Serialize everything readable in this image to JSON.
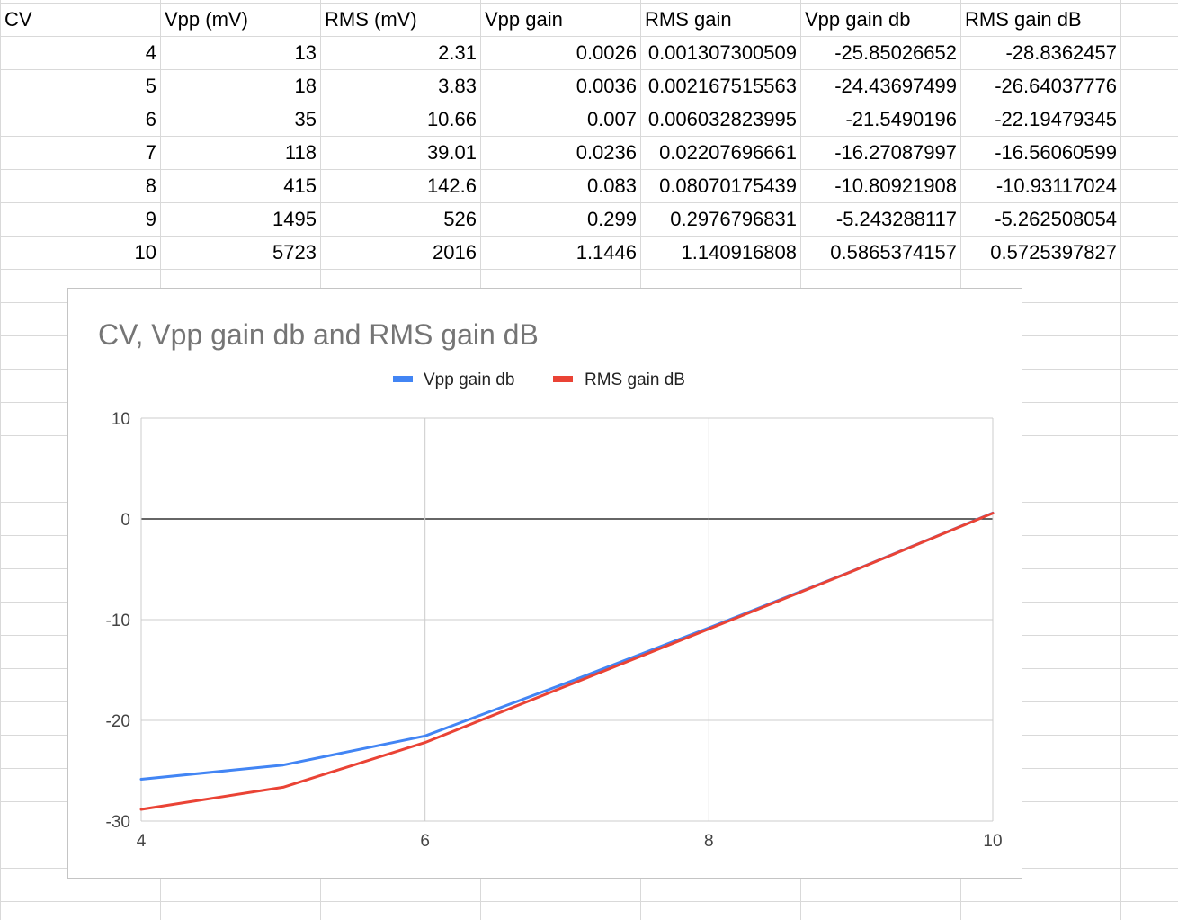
{
  "spreadsheet": {
    "headers": [
      "CV",
      "Vpp (mV)",
      "RMS (mV)",
      "Vpp gain",
      "RMS gain",
      "Vpp gain db",
      "RMS gain dB"
    ],
    "rows": [
      [
        "4",
        "13",
        "2.31",
        "0.0026",
        "0.001307300509",
        "-25.85026652",
        "-28.8362457"
      ],
      [
        "5",
        "18",
        "3.83",
        "0.0036",
        "0.002167515563",
        "-24.43697499",
        "-26.64037776"
      ],
      [
        "6",
        "35",
        "10.66",
        "0.007",
        "0.006032823995",
        "-21.5490196",
        "-22.19479345"
      ],
      [
        "7",
        "118",
        "39.01",
        "0.0236",
        "0.02207696661",
        "-16.27087997",
        "-16.56060599"
      ],
      [
        "8",
        "415",
        "142.6",
        "0.083",
        "0.08070175439",
        "-10.80921908",
        "-10.93117024"
      ],
      [
        "9",
        "1495",
        "526",
        "0.299",
        "0.2976796831",
        "-5.243288117",
        "-5.262508054"
      ],
      [
        "10",
        "5723",
        "2016",
        "1.1446",
        "1.140916808",
        "0.5865374157",
        "0.5725397827"
      ]
    ]
  },
  "chart_data": {
    "type": "line",
    "title": "CV, Vpp gain db and RMS gain dB",
    "xlabel": "",
    "ylabel": "",
    "x": [
      4,
      5,
      6,
      7,
      8,
      9,
      10
    ],
    "series": [
      {
        "name": "Vpp gain db",
        "color": "#4285f4",
        "values": [
          -25.85026652,
          -24.43697499,
          -21.5490196,
          -16.27087997,
          -10.80921908,
          -5.243288117,
          0.5865374157
        ]
      },
      {
        "name": "RMS gain dB",
        "color": "#ea4335",
        "values": [
          -28.8362457,
          -26.64037776,
          -22.19479345,
          -16.56060599,
          -10.93117024,
          -5.262508054,
          0.5725397827
        ]
      }
    ],
    "xlim": [
      4,
      10
    ],
    "ylim": [
      -30,
      10
    ],
    "xticks": [
      "4",
      "6",
      "8",
      "10"
    ],
    "yticks": [
      "10",
      "0",
      "-10",
      "-20",
      "-30"
    ],
    "grid": true,
    "legend_position": "top"
  }
}
